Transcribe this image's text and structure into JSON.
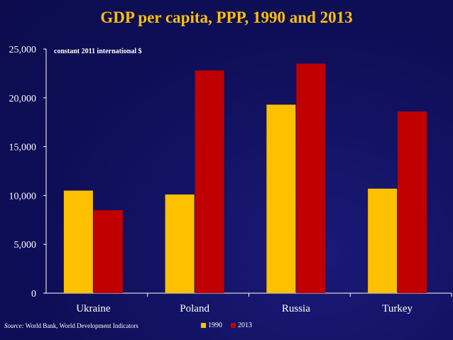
{
  "colors": {
    "background": "#0f0f5a",
    "title": "#ffc000",
    "series_1990": "#ffc000",
    "series_2013": "#c00000",
    "text": "#ffffff"
  },
  "chart_data": {
    "type": "bar",
    "title": "GDP per capita, PPP, 1990 and 2013",
    "ylabel": "constant 2011 international $",
    "xlabel": "",
    "categories": [
      "Ukraine",
      "Poland",
      "Russia",
      "Turkey"
    ],
    "series": [
      {
        "name": "1990",
        "values": [
          10500,
          10100,
          19300,
          10700
        ]
      },
      {
        "name": "2013",
        "values": [
          8500,
          22800,
          23500,
          18600
        ]
      }
    ],
    "ylim": [
      0,
      25000
    ],
    "yticks": [
      0,
      5000,
      10000,
      15000,
      20000,
      25000
    ],
    "ytick_labels": [
      "0",
      "5,000",
      "10,000",
      "15,000",
      "20,000",
      "25,000"
    ],
    "legend_position": "bottom-center",
    "grid": false
  },
  "source": {
    "label": "Source:",
    "text": " World Bank, World Development Indicators"
  }
}
